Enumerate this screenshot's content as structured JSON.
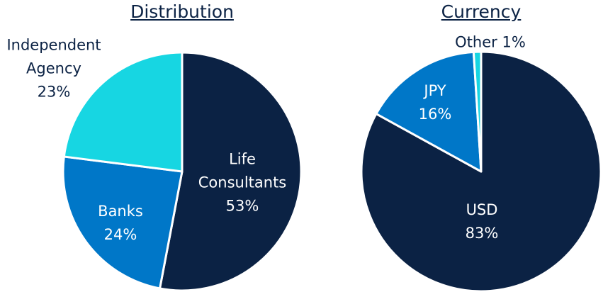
{
  "chart_data": [
    {
      "type": "pie",
      "title": "Distribution",
      "categories": [
        "Life Consultants",
        "Banks",
        "Independent Agency"
      ],
      "values": [
        53,
        24,
        23
      ],
      "value_labels": [
        "53%",
        "24%",
        "23%"
      ],
      "colors": [
        "#0b2244",
        "#0077c8",
        "#17d6e2"
      ]
    },
    {
      "type": "pie",
      "title": "Currency",
      "categories": [
        "USD",
        "JPY",
        "Other"
      ],
      "values": [
        83,
        16,
        1
      ],
      "value_labels": [
        "83%",
        "16%",
        "1%"
      ],
      "colors": [
        "#0b2244",
        "#0077c8",
        "#17d6e2"
      ]
    }
  ]
}
